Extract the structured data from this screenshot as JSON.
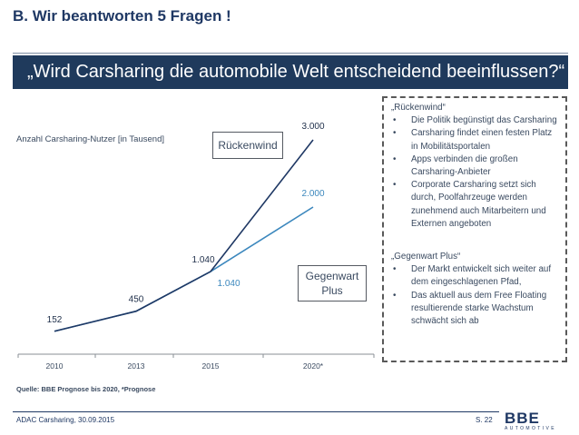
{
  "header": {
    "title": "B. Wir beantworten 5 Fragen !",
    "question": "„Wird Carsharing die automobile Welt entscheidend beeinflussen?“"
  },
  "chart_data": {
    "type": "line",
    "ylabel": "Anzahl Carsharing-Nutzer [in Tausend]",
    "categories": [
      "2010",
      "2013",
      "2015",
      "2020*"
    ],
    "series": [
      {
        "name": "Rückenwind",
        "values": [
          152,
          450,
          1040,
          3000
        ],
        "labels": [
          "152",
          "450",
          "1.040",
          "3.000"
        ],
        "color": "#1f3864"
      },
      {
        "name": "Gegenwart Plus",
        "values": [
          152,
          450,
          1040,
          2000
        ],
        "labels": [
          "",
          "",
          "1.040",
          "2.000"
        ],
        "color": "#3b87bd"
      }
    ],
    "ylim": [
      0,
      3000
    ],
    "source": "Quelle: BBE Prognose bis 2020, *Prognose"
  },
  "scenario_labels": {
    "rueckenwind": "Rückenwind",
    "gegenwart_line1": "Gegenwart",
    "gegenwart_line2": "Plus"
  },
  "notes": {
    "section1_title": "„Rückenwind“",
    "section1_items": [
      "Die Politik begünstigt das Carsharing",
      "Carsharing findet einen festen Platz in Mobilitätsportalen",
      "Apps verbinden die großen Carsharing-Anbieter",
      "Corporate Carsharing setzt sich durch, Poolfahrzeuge werden zunehmend auch Mitarbeitern und Externen angeboten"
    ],
    "section2_title": "„Gegenwart Plus“",
    "section2_items": [
      "Der Markt entwickelt sich weiter auf dem eingeschlagenen Pfad,",
      "Das aktuell aus dem Free Floating resultierende starke Wachstum schwächt sich ab"
    ],
    "bullet": "•"
  },
  "footer": {
    "left": "ADAC Carsharing, 30.09.2015",
    "page": "S. 22",
    "logo_top": "BBE",
    "logo_bottom": "AUTOMOTIVE"
  },
  "colors": {
    "primary": "#1f3864",
    "accent": "#3b87bd"
  }
}
